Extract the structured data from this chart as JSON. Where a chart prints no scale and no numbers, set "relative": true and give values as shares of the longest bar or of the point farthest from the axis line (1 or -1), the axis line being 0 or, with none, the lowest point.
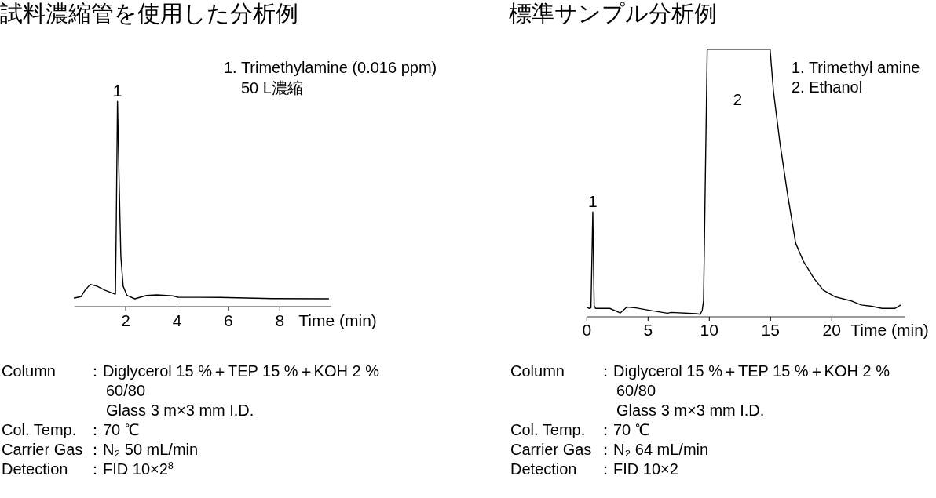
{
  "chart_data": [
    {
      "type": "line",
      "title": "試料濃縮管を使用した分析例",
      "xlabel": "Time (min)",
      "relative": true,
      "color": "#000000",
      "x": [
        0,
        0.26,
        0.42,
        0.62,
        0.88,
        1.18,
        1.57,
        1.6,
        1.63,
        1.68,
        1.74,
        1.81,
        1.9,
        2.05,
        2.35,
        2.81,
        3.22,
        3.83,
        4.04,
        5.67,
        7.71,
        9.9
      ],
      "values": [
        0.004,
        0.011,
        0.044,
        0.073,
        0.064,
        0.044,
        0.024,
        0.024,
        0.35,
        1,
        0.613,
        0.216,
        0.064,
        0.017,
        0,
        0.017,
        0.02,
        0.015,
        0.008,
        0.007,
        0.001,
        0
      ],
      "xlim": [
        0,
        10
      ],
      "xticks": [
        2,
        4,
        6,
        8
      ],
      "annotations": [
        {
          "text": "1",
          "x": 1.68,
          "y": 1
        },
        "1. Trimethylamine (0.016 ppm)",
        "50 L濃縮",
        "Column",
        "：Diglycerol 15 %＋TEP 15 %＋KOH 2 %",
        "60/80",
        "Glass 3 m×3 mm I.D.",
        "Col. Temp.",
        "：70 ℃",
        "Carrier Gas",
        "：N₂ 50 mL/min",
        "Detection",
        "：FID 10×2$^{8}$"
      ]
    },
    {
      "type": "line",
      "title": "標準サンプル分析例",
      "xlabel": "Time (min)",
      "relative": true,
      "color": "#000000",
      "x": [
        0,
        0.21,
        0.34,
        0.49,
        0.6,
        0.71,
        1.88,
        2.63,
        2.74,
        3.27,
        4.02,
        5.09,
        6.58,
        6.9,
        8.94,
        9.26,
        9.42,
        9.53,
        9.83,
        14.96,
        15.24,
        15.77,
        16.41,
        17.05,
        17.69,
        18.55,
        19.3,
        20.26,
        21.54,
        22.4,
        23.25,
        24.1,
        25.17,
        25.6
      ],
      "values": [
        0.027,
        0.022,
        0.024,
        0.386,
        0.032,
        0.022,
        0.022,
        0.007,
        0.005,
        0.027,
        0.024,
        0.015,
        0.004,
        0.007,
        0.002,
        0,
        0.014,
        0.051,
        1,
        1,
        0.84,
        0.645,
        0.446,
        0.268,
        0.199,
        0.135,
        0.091,
        0.066,
        0.051,
        0.035,
        0.03,
        0.022,
        0.022,
        0.034
      ],
      "xlim": [
        0,
        26
      ],
      "xticks": [
        0,
        5,
        10,
        15,
        20
      ],
      "annotations": [
        {
          "text": "1",
          "x": 0.49,
          "y": 0.386
        },
        "2",
        "1. Trimethyl amine",
        "2. Ethanol",
        "Column",
        "：Diglycerol 15 %＋TEP 15 %＋KOH 2 %",
        "60/80",
        "Glass 3 m×3 mm I.D.",
        "Col. Temp.",
        "：70 ℃",
        "Carrier Gas",
        "：N₂ 64 mL/min",
        "Detection",
        "：FID 10×2"
      ]
    }
  ]
}
